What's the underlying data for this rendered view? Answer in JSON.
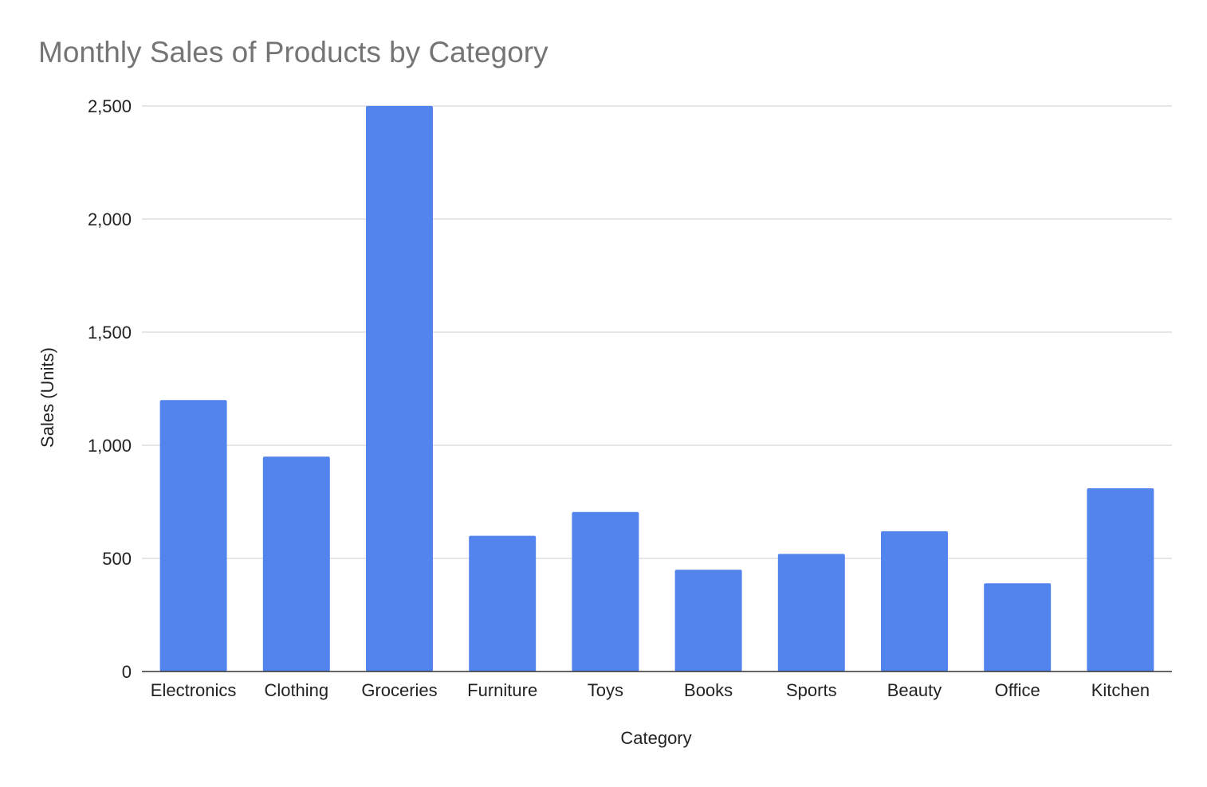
{
  "chart_data": {
    "type": "bar",
    "title": "Monthly Sales of Products by Category",
    "xlabel": "Category",
    "ylabel": "Sales (Units)",
    "categories": [
      "Electronics",
      "Clothing",
      "Groceries",
      "Furniture",
      "Toys",
      "Books",
      "Sports",
      "Beauty",
      "Office",
      "Kitchen"
    ],
    "values": [
      1200,
      950,
      2500,
      600,
      705,
      450,
      520,
      620,
      390,
      810
    ],
    "ylim": [
      0,
      2500
    ],
    "yticks": [
      0,
      500,
      1000,
      1500,
      2000,
      2500
    ],
    "ytick_labels": [
      "0",
      "500",
      "1,000",
      "1,500",
      "2,000",
      "2,500"
    ],
    "grid": true,
    "legend": "none",
    "bar_color": "#5384ED"
  }
}
